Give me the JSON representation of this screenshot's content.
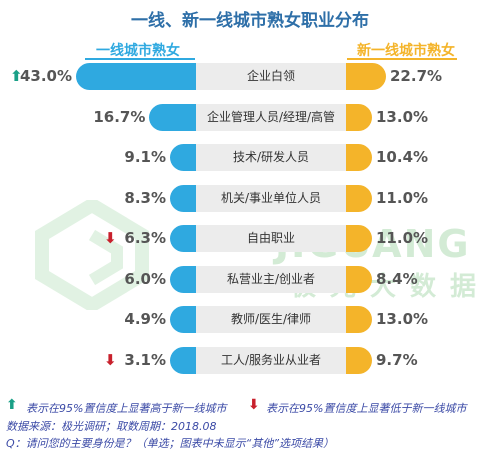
{
  "title": "一线、新一线城市熟女职业分布",
  "legend": {
    "left": "一线城市熟女",
    "right": "新一线城市熟女"
  },
  "watermark": {
    "en": "JIGUANG",
    "cn": "极光大数据"
  },
  "colors": {
    "left": "#2fa9e0",
    "right": "#f4b42a",
    "up": "#1aa087",
    "down": "#c8202c"
  },
  "chart_data": {
    "type": "bar",
    "title": "一线、新一线城市熟女职业分布",
    "categories": [
      "企业白领",
      "企业管理人员/经理/高管",
      "技术/研发人员",
      "机关/事业单位人员",
      "自由职业",
      "私营业主/创业者",
      "教师/医生/律师",
      "工人/服务业从业者"
    ],
    "series": [
      {
        "name": "一线城市熟女",
        "values": [
          43.0,
          16.7,
          9.1,
          8.3,
          6.3,
          6.0,
          4.9,
          3.1
        ],
        "labels": [
          "43.0%",
          "16.7%",
          "9.1%",
          "8.3%",
          "6.3%",
          "6.0%",
          "4.9%",
          "3.1%"
        ]
      },
      {
        "name": "新一线城市熟女",
        "values": [
          22.7,
          13.0,
          10.4,
          11.0,
          11.0,
          8.4,
          13.0,
          9.7
        ],
        "labels": [
          "22.7%",
          "13.0%",
          "10.4%",
          "11.0%",
          "11.0%",
          "8.4%",
          "13.0%",
          "9.7%"
        ]
      }
    ],
    "markers": [
      "up",
      "",
      "",
      "",
      "down",
      "",
      "",
      "down"
    ]
  },
  "footnotes": {
    "up_note": "表示在95%置信度上显著高于新一线城市",
    "down_note": "表示在95%置信度上显著低于新一线城市",
    "source": "数据来源：极光调研；取数周期：2018.08",
    "question": "Q：请问您的主要身份是？（单选；图表中未显示“其他”选项结果）"
  },
  "icons": {
    "up": "up-arrow-icon",
    "down": "down-arrow-icon"
  }
}
